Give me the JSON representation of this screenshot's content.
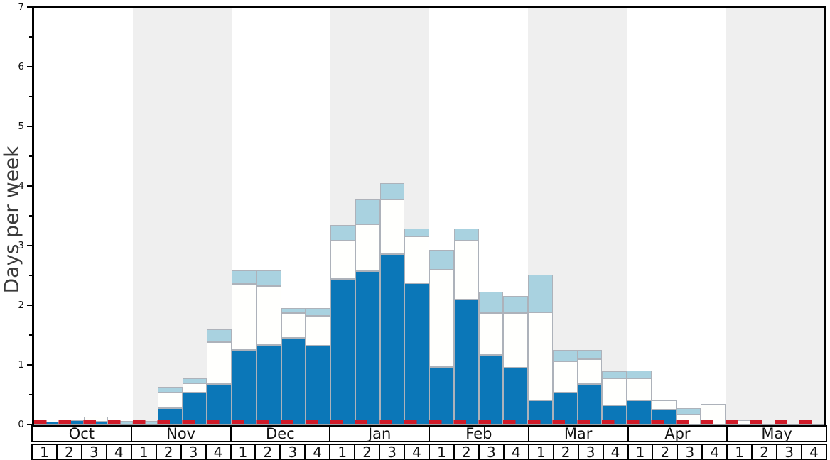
{
  "axis": {
    "y_label": "Days per week",
    "y_tick_labels": [
      "0",
      "1",
      "2",
      "3",
      "4",
      "5",
      "6",
      "7"
    ],
    "y_max": 7,
    "y_minor_step": 0.5
  },
  "months": [
    {
      "label": "Oct",
      "shaded": false
    },
    {
      "label": "Nov",
      "shaded": true
    },
    {
      "label": "Dec",
      "shaded": false
    },
    {
      "label": "Jan",
      "shaded": true
    },
    {
      "label": "Feb",
      "shaded": false
    },
    {
      "label": "Mar",
      "shaded": true
    },
    {
      "label": "Apr",
      "shaded": false
    },
    {
      "label": "May",
      "shaded": true
    }
  ],
  "week_labels": [
    "1",
    "2",
    "3",
    "4"
  ],
  "colors": {
    "dark_blue": "#0b77b8",
    "white_segment": "#fffffd",
    "light_blue": "#a9d2e0",
    "segment_border": "#adb2ba",
    "shaded_band": "#efefef",
    "plain_band": "#ffffff",
    "reference_red": "#d01a28",
    "axis_black": "#000000",
    "baseline_gray": "#9aa0a6",
    "y_label_gray": "#3a3a3a"
  },
  "chart_data": {
    "type": "bar",
    "stacked": true,
    "title": "",
    "xlabel": "",
    "ylabel": "Days per week",
    "ylim": [
      0,
      7
    ],
    "grid": false,
    "legend_position": "none",
    "categories": [
      "Oct-1",
      "Oct-2",
      "Oct-3",
      "Oct-4",
      "Nov-1",
      "Nov-2",
      "Nov-3",
      "Nov-4",
      "Dec-1",
      "Dec-2",
      "Dec-3",
      "Dec-4",
      "Jan-1",
      "Jan-2",
      "Jan-3",
      "Jan-4",
      "Feb-1",
      "Feb-2",
      "Feb-3",
      "Feb-4",
      "Mar-1",
      "Mar-2",
      "Mar-3",
      "Mar-4",
      "Apr-1",
      "Apr-2",
      "Apr-3",
      "Apr-4",
      "May-1",
      "May-2",
      "May-3",
      "May-4"
    ],
    "series": [
      {
        "name": "dark-blue-days",
        "color": "#0b77b8",
        "values": [
          0.05,
          0.07,
          0.05,
          0,
          0,
          0.27,
          0.53,
          0.68,
          1.25,
          1.33,
          1.45,
          1.32,
          2.44,
          2.57,
          2.86,
          2.37,
          0.97,
          2.09,
          1.17,
          0.95,
          0.41,
          0.54,
          0.68,
          0.32,
          0.41,
          0.25,
          0,
          0,
          0,
          0,
          0,
          0
        ]
      },
      {
        "name": "white-days",
        "color": "#fffffd",
        "values": [
          0,
          0,
          0.08,
          0,
          0,
          0.27,
          0.16,
          0.7,
          1.11,
          0.99,
          0.42,
          0.5,
          0.64,
          0.79,
          0.91,
          0.78,
          1.62,
          0.99,
          0.7,
          0.92,
          1.47,
          0.52,
          0.42,
          0.45,
          0.36,
          0.16,
          0.17,
          0.34,
          0.07,
          0,
          0,
          0
        ]
      },
      {
        "name": "light-blue-days",
        "color": "#a9d2e0",
        "values": [
          0,
          0,
          0,
          0.06,
          0.06,
          0.09,
          0.08,
          0.22,
          0.22,
          0.26,
          0.08,
          0.13,
          0.26,
          0.41,
          0.28,
          0.14,
          0.34,
          0.21,
          0.36,
          0.28,
          0.63,
          0.19,
          0.15,
          0.12,
          0.13,
          0,
          0.1,
          0,
          0,
          0,
          0,
          0
        ]
      }
    ],
    "totals": [
      0.05,
      0.07,
      0.13,
      0.06,
      0.06,
      0.63,
      0.77,
      1.6,
      2.58,
      2.58,
      1.95,
      1.95,
      3.34,
      3.77,
      4.05,
      3.29,
      2.93,
      3.29,
      2.23,
      2.15,
      2.51,
      1.25,
      1.25,
      0.89,
      0.9,
      0.41,
      0.27,
      0.34,
      0.07,
      0,
      0,
      0
    ],
    "reference_line": {
      "value": 0.05,
      "style": "dashed",
      "color": "#d01a28"
    }
  }
}
